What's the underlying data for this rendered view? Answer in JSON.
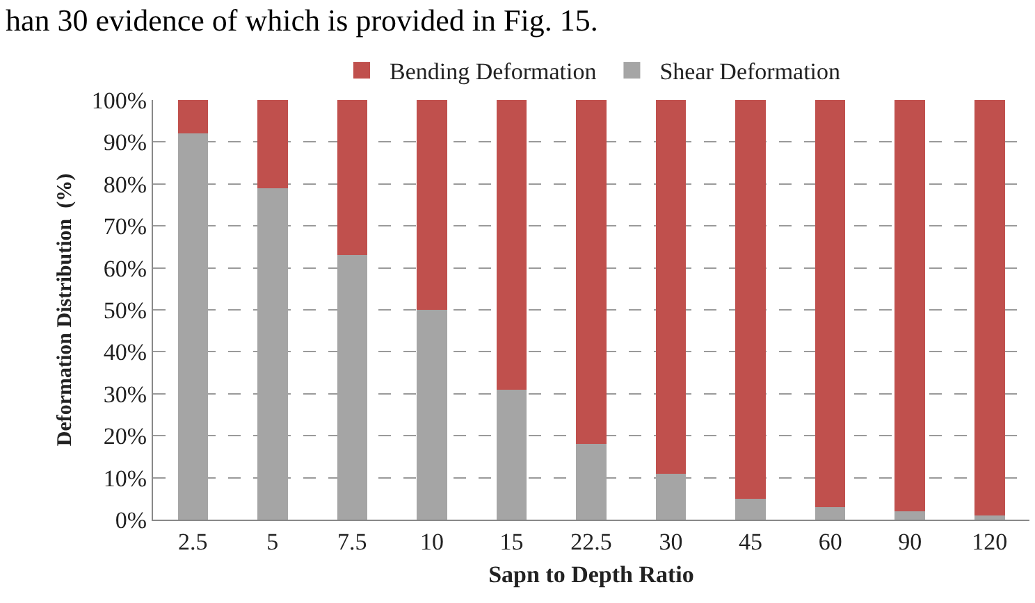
{
  "chart_data": {
    "type": "bar",
    "stacked": true,
    "xlabel": "Sapn to Depth Ratio",
    "ylabel": "Deformation Distribution  (%)",
    "annotations": [
      "han 30 evidence of which is provided in Fig. 15."
    ],
    "categories": [
      "2.5",
      "5",
      "7.5",
      "10",
      "15",
      "22.5",
      "30",
      "45",
      "60",
      "90",
      "120"
    ],
    "series": [
      {
        "name": "Shear Deformation",
        "color": "#a5a5a5",
        "values": [
          92,
          79,
          63,
          50,
          31,
          18,
          11,
          5,
          3,
          2,
          1
        ]
      },
      {
        "name": "Bending Deformation",
        "color": "#c0504d",
        "values": [
          8,
          21,
          37,
          50,
          69,
          82,
          89,
          95,
          97,
          98,
          99
        ]
      }
    ],
    "ylim": [
      0,
      100
    ],
    "yticks": [
      {
        "value": 0,
        "label": "0%"
      },
      {
        "value": 10,
        "label": "10%"
      },
      {
        "value": 20,
        "label": "20%"
      },
      {
        "value": 30,
        "label": "30%"
      },
      {
        "value": 40,
        "label": "40%"
      },
      {
        "value": 50,
        "label": "50%"
      },
      {
        "value": 60,
        "label": "60%"
      },
      {
        "value": 70,
        "label": "70%"
      },
      {
        "value": 80,
        "label": "80%"
      },
      {
        "value": 90,
        "label": "90%"
      },
      {
        "value": 100,
        "label": "100%"
      }
    ],
    "grid": "y",
    "legend": "top"
  }
}
